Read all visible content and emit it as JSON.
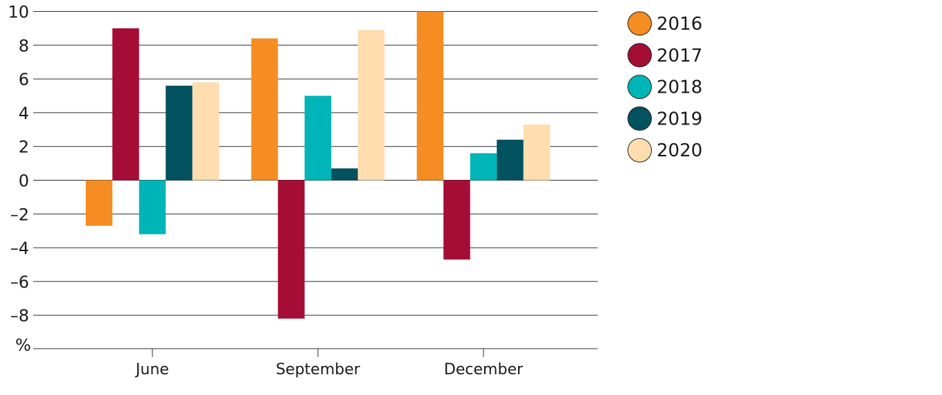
{
  "chart_data": {
    "type": "bar",
    "categories": [
      "June",
      "September",
      "December"
    ],
    "unit_label": "%",
    "ylim": [
      -10,
      10
    ],
    "y_ticks": [
      10,
      8,
      6,
      4,
      2,
      0,
      -2,
      -4,
      -6,
      -8
    ],
    "y_tick_labels": [
      "10",
      "8",
      "6",
      "4",
      "2",
      "0",
      "–2",
      "–4",
      "–6",
      "–8"
    ],
    "grid": true,
    "legend_position": "right",
    "series": [
      {
        "name": "2016",
        "color": "#F58D22",
        "values": [
          -2.7,
          8.4,
          10.0
        ]
      },
      {
        "name": "2017",
        "color": "#A50D36",
        "values": [
          9.0,
          -8.2,
          -4.7
        ]
      },
      {
        "name": "2018",
        "color": "#00B5B8",
        "values": [
          -3.2,
          5.0,
          1.6
        ]
      },
      {
        "name": "2019",
        "color": "#02525F",
        "values": [
          5.6,
          0.7,
          2.4
        ]
      },
      {
        "name": "2020",
        "color": "#FFDDAF",
        "values": [
          5.8,
          8.9,
          3.3
        ]
      }
    ]
  }
}
